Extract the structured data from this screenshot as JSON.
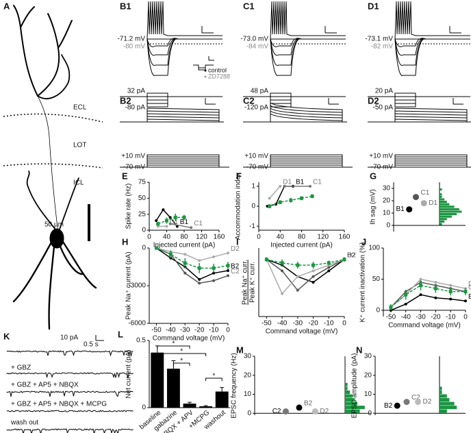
{
  "morphology": {
    "label": "A",
    "layers": [
      "ECL",
      "LOT",
      "ICL"
    ],
    "scale": "50 µm"
  },
  "current_clamp": [
    {
      "label": "B1",
      "rest": "-71.2 mV",
      "rest_zd": "-80 mV",
      "inj_top": "32 pA",
      "inj_bottom": "-80 pA"
    },
    {
      "label": "C1",
      "rest": "-73.0 mV",
      "rest_zd": "-84 mV",
      "inj_top": "48 pA",
      "inj_bottom": "-120 pA"
    },
    {
      "label": "D1",
      "rest": "-73.1 mV",
      "rest_zd": "-82 mV",
      "inj_top": "20 pA",
      "inj_bottom": "-50 pA"
    }
  ],
  "legend": [
    "control",
    "ZD7288"
  ],
  "voltage_clamp": [
    {
      "label": "B2",
      "top": "+10 mV",
      "bottom": "-70 mV"
    },
    {
      "label": "C2",
      "top": "+10 mV",
      "bottom": "-70 mV"
    },
    {
      "label": "D2",
      "top": "+10 mV",
      "bottom": "-70 mV"
    }
  ],
  "recordings": {
    "label": "K",
    "scale_y": "10 pA",
    "scale_x": "0.5 s",
    "conditions": [
      "+ GBZ",
      "+ GBZ + AP5 + NBQX",
      "+ GBZ + AP5 + NBQX + MCPG",
      "wash out"
    ]
  },
  "chart_data": [
    {
      "type": "line",
      "panel": "E",
      "xlabel": "Injected current (pA)",
      "ylabel": "Spike rate (Hz)",
      "xlim": [
        0,
        160
      ],
      "xticks": [
        0,
        40,
        80,
        120,
        160
      ],
      "ylim": [
        0,
        75
      ],
      "yticks": [
        0,
        25,
        50,
        75
      ],
      "series": [
        {
          "name": "B1",
          "color": "#000000",
          "x": [
            16,
            32,
            48,
            64
          ],
          "values": [
            15,
            32,
            20,
            6
          ]
        },
        {
          "name": "C1",
          "color": "#777777",
          "x": [
            48,
            96
          ],
          "values": [
            10,
            4
          ]
        },
        {
          "name": "D1",
          "color": "#aaaaaa",
          "x": [
            20,
            40
          ],
          "values": [
            6,
            6
          ]
        },
        {
          "color": "#1a9641",
          "style": "dashed",
          "x": [
            20,
            40,
            60,
            80
          ],
          "values": [
            10,
            15,
            20,
            20
          ],
          "errors": [
            3,
            5,
            6,
            4
          ]
        }
      ]
    },
    {
      "type": "line",
      "panel": "F",
      "xlabel": "Injected current (pA)",
      "ylabel": "Accommodation index",
      "xlim": [
        0,
        160
      ],
      "xticks": [
        0,
        40,
        80,
        120,
        160
      ],
      "ylim": [
        -1.2,
        1.2
      ],
      "yticks": [
        -1,
        0,
        1
      ],
      "series": [
        {
          "name": "B1",
          "color": "#000000",
          "x": [
            16,
            32,
            48,
            64
          ],
          "values": [
            0,
            0.1,
            1,
            1
          ]
        },
        {
          "name": "C1",
          "color": "#777777",
          "x": [
            48,
            96
          ],
          "values": [
            1,
            1
          ]
        },
        {
          "name": "D1",
          "color": "#aaaaaa",
          "x": [
            20,
            40
          ],
          "values": [
            0.4,
            1
          ]
        },
        {
          "color": "#1a9641",
          "style": "dashed",
          "x": [
            20,
            40,
            60,
            80,
            100
          ],
          "values": [
            0,
            0.2,
            0.3,
            0.4,
            0.5
          ],
          "errors": [
            0.1,
            0.1,
            0.12,
            0.1,
            0.1
          ]
        }
      ]
    },
    {
      "type": "scatter",
      "panel": "G",
      "ylabel": "Ih sag (mV)",
      "ylim": [
        -5,
        35
      ],
      "yticks": [
        0,
        10,
        20,
        30
      ],
      "series": [
        {
          "name": "B1",
          "color": "#000000",
          "values": [
            13
          ]
        },
        {
          "name": "C1",
          "color": "#555555",
          "values": [
            23
          ]
        },
        {
          "name": "D1",
          "color": "#aaaaaa",
          "values": [
            18
          ]
        }
      ],
      "hist": {
        "color": "#1a9641",
        "bins": [
          0,
          2,
          4,
          6,
          8,
          10,
          12,
          14,
          16,
          18,
          20,
          22,
          24,
          26,
          28,
          30
        ],
        "counts": [
          1,
          2,
          3,
          5,
          7,
          9,
          8,
          6,
          4,
          3,
          2,
          1,
          1,
          0,
          1
        ]
      }
    },
    {
      "type": "line",
      "panel": "H",
      "xlabel": "Command voltage (mV)",
      "ylabel": "Peak Na⁺ current (pA)",
      "xlim": [
        -55,
        0
      ],
      "xticks": [
        -50,
        -40,
        -30,
        -20,
        -10,
        0
      ],
      "ylim": [
        -6000,
        0
      ],
      "yticks": [
        -6000,
        -3000,
        0
      ],
      "series": [
        {
          "name": "B2",
          "color": "#000000",
          "x": [
            -50,
            -40,
            -30,
            -20,
            -10,
            0
          ],
          "values": [
            0,
            -800,
            -1500,
            -2500,
            -2000,
            -1800
          ]
        },
        {
          "name": "C2",
          "color": "#555555",
          "x": [
            -50,
            -40,
            -30,
            -20,
            -10,
            0
          ],
          "values": [
            0,
            -500,
            -2000,
            -2800,
            -2600,
            -2200
          ]
        },
        {
          "name": "D2",
          "color": "#aaaaaa",
          "x": [
            -50,
            -40,
            -30,
            -20,
            -10,
            0
          ],
          "values": [
            0,
            -300,
            -500,
            -1000,
            -700,
            -400
          ]
        },
        {
          "color": "#1a9641",
          "style": "dashed",
          "x": [
            -50,
            -40,
            -30,
            -20,
            -10,
            0
          ],
          "values": [
            0,
            -500,
            -1200,
            -1600,
            -1600,
            -1400
          ],
          "errors": [
            100,
            300,
            400,
            400,
            350,
            300
          ]
        }
      ]
    },
    {
      "type": "line",
      "panel": "I",
      "xlabel": "Command voltage (mV)",
      "ylabel": "Peak Na⁺ curr.",
      "ylabel2": "Peak K⁺ curr.",
      "xlim": [
        -55,
        0
      ],
      "xticks": [
        -50,
        -40,
        -30,
        -20,
        -10,
        0
      ],
      "ylim": [
        -55,
        5
      ],
      "yticks": [],
      "series": [
        {
          "name": "B2",
          "color": "#000000",
          "x": [
            -50,
            -40,
            -30,
            -20,
            -10,
            0
          ],
          "values": [
            -5,
            -10,
            -20,
            -25,
            -15,
            -5
          ]
        },
        {
          "name": "C2",
          "color": "#555555",
          "x": [
            -50,
            -40,
            -30,
            -20,
            -10,
            0
          ],
          "values": [
            -5,
            -15,
            -32,
            -20,
            -12,
            -5
          ]
        },
        {
          "name": "D2",
          "color": "#aaaaaa",
          "x": [
            -50,
            -40,
            -30,
            -20,
            -10,
            0
          ],
          "values": [
            -5,
            -35,
            -20,
            -15,
            -10,
            -5
          ]
        },
        {
          "color": "#1a9641",
          "style": "dashed",
          "x": [
            -50,
            -40,
            -30,
            -20,
            -10,
            0
          ],
          "values": [
            -5,
            -8,
            -10,
            -10,
            -8,
            -5
          ],
          "errors": [
            2,
            3,
            3,
            3,
            2,
            2
          ]
        }
      ]
    },
    {
      "type": "line",
      "panel": "J",
      "xlabel": "Command voltage (mV)",
      "ylabel": "K⁺ current inactivation (%)",
      "xlim": [
        -55,
        0
      ],
      "xticks": [
        -50,
        -40,
        -30,
        -20,
        -10,
        0
      ],
      "ylim": [
        -10,
        100
      ],
      "yticks": [
        0,
        50,
        100
      ],
      "series": [
        {
          "name": "B2",
          "color": "#000000",
          "x": [
            -50,
            -40,
            -30,
            -20,
            -10,
            0
          ],
          "values": [
            0,
            10,
            25,
            20,
            18,
            15
          ]
        },
        {
          "name": "C2",
          "color": "#555555",
          "x": [
            -50,
            -40,
            -30,
            -20,
            -10,
            0
          ],
          "values": [
            5,
            30,
            45,
            40,
            35,
            30
          ]
        },
        {
          "name": "D2",
          "color": "#aaaaaa",
          "x": [
            -50,
            -40,
            -30,
            -20,
            -10,
            0
          ],
          "values": [
            5,
            25,
            50,
            45,
            40,
            35
          ]
        },
        {
          "color": "#1a9641",
          "style": "dashed",
          "x": [
            -50,
            -40,
            -30,
            -20,
            -10,
            0
          ],
          "values": [
            5,
            25,
            40,
            35,
            30,
            30
          ],
          "errors": [
            5,
            8,
            8,
            7,
            6,
            6
          ]
        }
      ]
    },
    {
      "type": "bar",
      "panel": "L",
      "ylabel": "Net current (pA)",
      "ylim": [
        0,
        0.5
      ],
      "yticks": [
        0,
        0.5
      ],
      "color": "#000000",
      "categories": [
        "baseline",
        "gabazine",
        "+NBQX + APV",
        "+MCPG",
        "washout"
      ],
      "values": [
        0.41,
        0.29,
        0.03,
        0.01,
        0.12
      ],
      "errors": [
        0.05,
        0.06,
        0.01,
        0.005,
        0.03
      ],
      "annotations": [
        "*",
        "*",
        "*",
        "*"
      ]
    },
    {
      "type": "scatter",
      "panel": "M",
      "ylabel": "EPSC frequency (Hz)",
      "ylim": [
        -1,
        30
      ],
      "yticks": [
        0,
        10,
        20,
        30
      ],
      "series": [
        {
          "name": "C2",
          "color": "#777777",
          "values": [
            1
          ]
        },
        {
          "name": "B2",
          "color": "#000000",
          "values": [
            3
          ]
        },
        {
          "name": "D2",
          "color": "#bbbbbb",
          "values": [
            1
          ]
        }
      ],
      "hist": {
        "color": "#1a9641",
        "bins": [
          0,
          2,
          4,
          6,
          8,
          10,
          12,
          14,
          16
        ],
        "counts": [
          6,
          8,
          5,
          4,
          3,
          2,
          1,
          1
        ]
      }
    },
    {
      "type": "scatter",
      "panel": "N",
      "ylabel": "EPSC amplitude (pA)",
      "ylim": [
        -1,
        30
      ],
      "yticks": [
        0,
        10,
        20,
        30
      ],
      "series": [
        {
          "name": "B2",
          "color": "#000000",
          "values": [
            4
          ]
        },
        {
          "name": "C2",
          "color": "#777777",
          "values": [
            6
          ]
        },
        {
          "name": "D2",
          "color": "#bbbbbb",
          "values": [
            6
          ]
        }
      ],
      "hist": {
        "color": "#1a9641",
        "bins": [
          0,
          2,
          4,
          6,
          8,
          10,
          12,
          14
        ],
        "counts": [
          3,
          7,
          6,
          4,
          3,
          1,
          1
        ]
      }
    }
  ]
}
